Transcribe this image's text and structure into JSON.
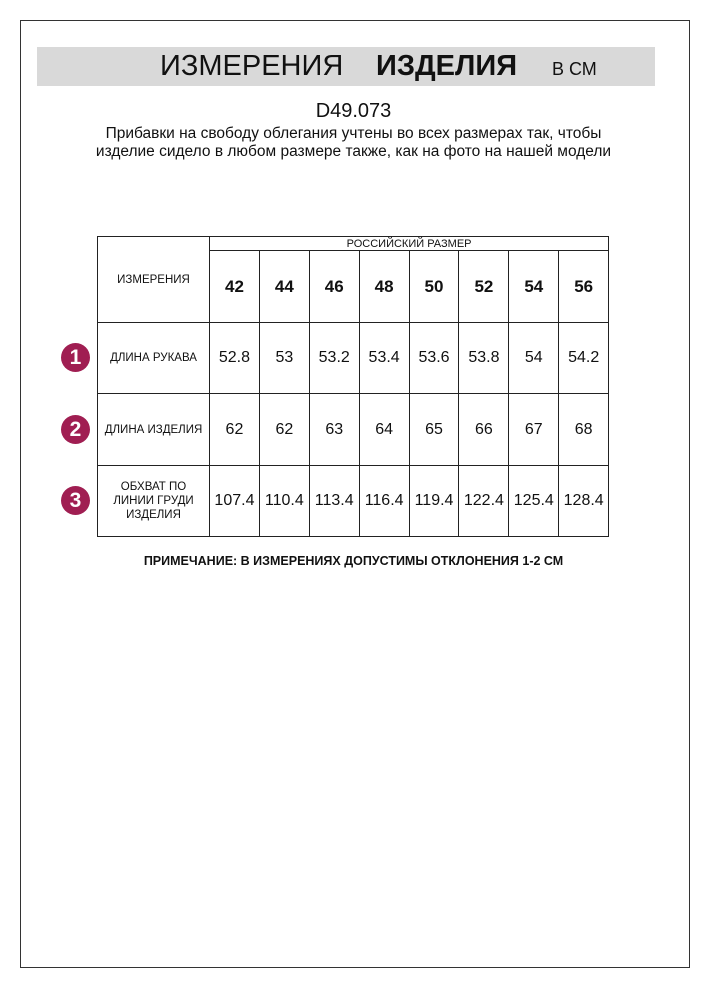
{
  "header": {
    "title_regular": "ИЗМЕРЕНИЯ",
    "title_bold": "ИЗДЕЛИЯ",
    "unit": "В СМ"
  },
  "article": "D49.073",
  "description": "Прибавки на свободу облегания учтены во всех размерах так, чтобы изделие сидело в любом размере также, как на фото на нашей модели",
  "table": {
    "corner_label": "ИЗМЕРЕНИЯ",
    "group_label": "РОССИЙСКИЙ РАЗМЕР",
    "sizes": [
      "42",
      "44",
      "46",
      "48",
      "50",
      "52",
      "54",
      "56"
    ],
    "rows": [
      {
        "badge": "1",
        "label": "ДЛИНА РУКАВА",
        "values": [
          "52.8",
          "53",
          "53.2",
          "53.4",
          "53.6",
          "53.8",
          "54",
          "54.2"
        ]
      },
      {
        "badge": "2",
        "label": "ДЛИНА ИЗДЕЛИЯ",
        "values": [
          "62",
          "62",
          "63",
          "64",
          "65",
          "66",
          "67",
          "68"
        ]
      },
      {
        "badge": "3",
        "label": "ОБХВАТ ПО ЛИНИИ ГРУДИ ИЗДЕЛИЯ",
        "values": [
          "107.4",
          "110.4",
          "113.4",
          "116.4",
          "119.4",
          "122.4",
          "125.4",
          "128.4"
        ]
      }
    ]
  },
  "note": "ПРИМЕЧАНИЕ: В ИЗМЕРЕНИЯХ ДОПУСТИМЫ ОТКЛОНЕНИЯ 1-2 СМ",
  "colors": {
    "badge": "#a01e52",
    "band": "#d9d9d9"
  }
}
